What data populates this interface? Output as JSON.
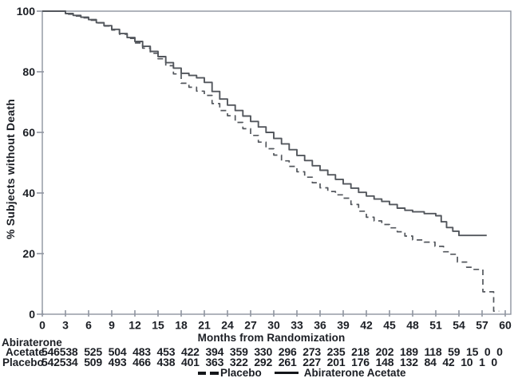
{
  "figure": {
    "title": "",
    "colors": {
      "curve": "#53575d",
      "axis_box": "#8f95a0",
      "tick_mark": "#8f95a0",
      "text": "#1b1e24",
      "background": "#ffffff"
    }
  },
  "legend": {
    "items": [
      {
        "label": "Placebo",
        "style": "dashed"
      },
      {
        "label": "Abiraterone Acetate",
        "style": "solid"
      }
    ]
  },
  "chart_data": {
    "type": "line",
    "subtype": "kaplan-meier-step",
    "title": "",
    "xlabel": "Months from Randomization",
    "ylabel": "% Subjects without Death",
    "xlim": [
      0,
      60
    ],
    "ylim": [
      0,
      100
    ],
    "xticks": [
      0,
      3,
      6,
      9,
      12,
      15,
      18,
      21,
      24,
      27,
      30,
      33,
      36,
      39,
      42,
      45,
      48,
      51,
      54,
      57,
      60
    ],
    "yticks": [
      0,
      20,
      40,
      60,
      80,
      100
    ],
    "grid": false,
    "legend_position": "bottom",
    "series": [
      {
        "name": "Placebo",
        "style": "dashed",
        "points": [
          [
            0,
            100
          ],
          [
            2.2,
            100
          ],
          [
            3,
            99
          ],
          [
            4,
            98.4
          ],
          [
            5,
            97.8
          ],
          [
            6,
            97
          ],
          [
            7,
            96.1
          ],
          [
            8,
            95.1
          ],
          [
            9,
            93.8
          ],
          [
            10,
            92.4
          ],
          [
            11,
            91
          ],
          [
            12,
            89.5
          ],
          [
            13,
            87.8
          ],
          [
            14,
            86.1
          ],
          [
            15,
            84.3
          ],
          [
            16,
            82
          ],
          [
            17,
            79.3
          ],
          [
            18,
            76.2
          ],
          [
            19,
            74.9
          ],
          [
            20,
            73.6
          ],
          [
            21,
            72.2
          ],
          [
            22,
            69.5
          ],
          [
            23,
            67.2
          ],
          [
            24,
            65.5
          ],
          [
            25,
            63.3
          ],
          [
            26,
            61.2
          ],
          [
            27,
            59
          ],
          [
            28,
            56.8
          ],
          [
            29,
            54.6
          ],
          [
            30,
            52.5
          ],
          [
            31,
            50.6
          ],
          [
            32,
            48.8
          ],
          [
            33,
            47
          ],
          [
            34,
            45.2
          ],
          [
            35,
            43.4
          ],
          [
            36,
            41.7
          ],
          [
            37,
            40.5
          ],
          [
            38,
            39.4
          ],
          [
            39,
            38.3
          ],
          [
            40,
            36.2
          ],
          [
            41,
            34
          ],
          [
            42,
            32
          ],
          [
            43,
            30.8
          ],
          [
            44,
            29.6
          ],
          [
            45,
            28.5
          ],
          [
            46,
            27.2
          ],
          [
            47,
            25.8
          ],
          [
            48,
            24.5
          ],
          [
            49.5,
            23.8
          ],
          [
            50.9,
            22.4
          ],
          [
            52,
            20.6
          ],
          [
            52.8,
            19.8
          ],
          [
            53.8,
            17.2
          ],
          [
            55,
            15.5
          ],
          [
            55.8,
            14.8
          ],
          [
            57.1,
            14.8
          ],
          [
            57.1,
            7.4
          ],
          [
            58.5,
            7.4
          ],
          [
            58.5,
            1
          ],
          [
            59.2,
            1
          ]
        ]
      },
      {
        "name": "Abiraterone Acetate",
        "style": "solid",
        "points": [
          [
            0,
            100
          ],
          [
            2.2,
            100
          ],
          [
            3,
            99.2
          ],
          [
            4,
            98.6
          ],
          [
            5,
            98
          ],
          [
            6,
            97.2
          ],
          [
            7,
            96.2
          ],
          [
            8,
            95.2
          ],
          [
            9,
            94
          ],
          [
            10,
            92.6
          ],
          [
            11,
            91.3
          ],
          [
            12,
            90
          ],
          [
            13,
            88.4
          ],
          [
            14,
            86.7
          ],
          [
            15,
            85
          ],
          [
            16,
            83
          ],
          [
            17,
            81.2
          ],
          [
            18,
            79.5
          ],
          [
            19,
            78.8
          ],
          [
            20,
            78
          ],
          [
            21,
            76.5
          ],
          [
            22,
            73.5
          ],
          [
            23,
            71
          ],
          [
            24,
            69
          ],
          [
            25,
            67.2
          ],
          [
            26,
            65.4
          ],
          [
            27,
            63.6
          ],
          [
            28,
            61.8
          ],
          [
            29,
            60
          ],
          [
            30,
            58
          ],
          [
            31,
            56.2
          ],
          [
            32,
            54.3
          ],
          [
            33,
            52.4
          ],
          [
            34,
            50.7
          ],
          [
            35,
            49
          ],
          [
            36,
            47.5
          ],
          [
            37,
            46
          ],
          [
            38,
            44.5
          ],
          [
            39,
            43
          ],
          [
            40,
            41.6
          ],
          [
            41,
            40.2
          ],
          [
            42,
            39
          ],
          [
            43,
            38
          ],
          [
            44,
            37.2
          ],
          [
            45,
            36.2
          ],
          [
            46,
            35
          ],
          [
            47,
            34.3
          ],
          [
            48,
            33.8
          ],
          [
            49.5,
            33.2
          ],
          [
            51,
            32.5
          ],
          [
            51.7,
            30.5
          ],
          [
            52.4,
            28.6
          ],
          [
            53.2,
            27.4
          ],
          [
            54,
            26
          ],
          [
            57.6,
            26
          ]
        ]
      }
    ],
    "at_risk": {
      "header": "Abiraterone",
      "rows": [
        {
          "label": "Acetate",
          "values": [
            546,
            538,
            525,
            504,
            483,
            453,
            422,
            394,
            359,
            330,
            296,
            273,
            235,
            218,
            202,
            189,
            118,
            59,
            15,
            0,
            0
          ]
        },
        {
          "label": "Placebo",
          "values": [
            542,
            534,
            509,
            493,
            466,
            438,
            401,
            363,
            322,
            292,
            261,
            227,
            201,
            176,
            148,
            132,
            84,
            42,
            10,
            1,
            0
          ]
        }
      ]
    }
  }
}
